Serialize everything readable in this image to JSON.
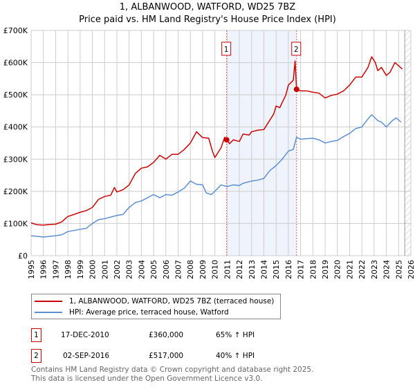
{
  "title": {
    "line1": "1, ALBANWOOD, WATFORD, WD25 7BZ",
    "line2": "Price paid vs. HM Land Registry's House Price Index (HPI)"
  },
  "colors": {
    "property": "#cc0000",
    "hpi": "#5b8fd4",
    "shade": "#eef3fc"
  },
  "chart_data": {
    "type": "line",
    "title": "Price paid vs. HM Land Registry's House Price Index (HPI)",
    "xlim": [
      1995,
      2026
    ],
    "ylim": [
      0,
      700000
    ],
    "yticks": [
      {
        "v": 0,
        "label": "£0"
      },
      {
        "v": 100000,
        "label": "£100K"
      },
      {
        "v": 200000,
        "label": "£200K"
      },
      {
        "v": 300000,
        "label": "£300K"
      },
      {
        "v": 400000,
        "label": "£400K"
      },
      {
        "v": 500000,
        "label": "£500K"
      },
      {
        "v": 600000,
        "label": "£600K"
      },
      {
        "v": 700000,
        "label": "£700K"
      }
    ],
    "xticks": [
      "1995",
      "1996",
      "1997",
      "1998",
      "1999",
      "2000",
      "2001",
      "2002",
      "2003",
      "2004",
      "2005",
      "2006",
      "2007",
      "2008",
      "2009",
      "2010",
      "2011",
      "2012",
      "2013",
      "2014",
      "2015",
      "2016",
      "2017",
      "2018",
      "2019",
      "2020",
      "2021",
      "2022",
      "2023",
      "2024",
      "2025",
      "2026"
    ],
    "grid": true,
    "shaded_range": [
      2010.96,
      2016.67
    ],
    "forecast_hatch_from": 2025.5,
    "series": [
      {
        "name": "1, ALBANWOOD, WATFORD, WD25 7BZ (terraced house)",
        "color": "#cc0000",
        "x": [
          1995,
          1995.5,
          1996,
          1996.5,
          1997,
          1997.5,
          1998,
          1998.5,
          1999,
          1999.5,
          2000,
          2000.5,
          2001,
          2001.5,
          2001.8,
          2002,
          2002.5,
          2003,
          2003.5,
          2004,
          2004.5,
          2005,
          2005.5,
          2006,
          2006.5,
          2007,
          2007.5,
          2008,
          2008.5,
          2009,
          2009.5,
          2009.8,
          2010,
          2010.5,
          2010.8,
          2010.96,
          2011.2,
          2011.5,
          2012,
          2012.3,
          2012.8,
          2013,
          2013.5,
          2014,
          2014.3,
          2014.8,
          2015,
          2015.3,
          2015.8,
          2016,
          2016.4,
          2016.55,
          2016.67,
          2017,
          2017.5,
          2018,
          2018.5,
          2019,
          2019.5,
          2020,
          2020.5,
          2021,
          2021.5,
          2022,
          2022.5,
          2022.8,
          2023.1,
          2023.3,
          2023.6,
          2024,
          2024.3,
          2024.7,
          2025,
          2025.3
        ],
        "y": [
          102,
          96,
          95,
          97,
          98,
          105,
          122,
          128,
          135,
          140,
          150,
          175,
          184,
          188,
          212,
          198,
          205,
          220,
          255,
          272,
          276,
          290,
          312,
          300,
          315,
          315,
          330,
          350,
          385,
          367,
          365,
          325,
          305,
          335,
          368,
          360,
          348,
          360,
          355,
          378,
          375,
          385,
          390,
          392,
          410,
          440,
          465,
          460,
          500,
          530,
          545,
          605,
          517,
          512,
          512,
          508,
          505,
          490,
          498,
          502,
          512,
          530,
          555,
          555,
          585,
          618,
          600,
          575,
          585,
          560,
          570,
          600,
          590,
          580
        ]
      },
      {
        "name": "HPI: Average price, terraced house, Watford",
        "color": "#5b8fd4",
        "x": [
          1995,
          1996,
          1997,
          1997.5,
          1998,
          1999,
          1999.5,
          2000,
          2000.5,
          2001,
          2002,
          2002.5,
          2003,
          2003.5,
          2004,
          2004.5,
          2005,
          2005.5,
          2006,
          2006.5,
          2007,
          2007.5,
          2008,
          2008.5,
          2009,
          2009.3,
          2009.7,
          2010,
          2010.5,
          2011,
          2011.5,
          2012,
          2012.3,
          2013,
          2013.5,
          2014,
          2014.5,
          2015,
          2015.5,
          2016,
          2016.4,
          2016.67,
          2017,
          2018,
          2018.5,
          2019,
          2019.5,
          2020,
          2020.5,
          2021,
          2021.5,
          2022,
          2022.5,
          2022.8,
          2023.3,
          2023.6,
          2024,
          2024.5,
          2024.8,
          2025.2
        ],
        "y": [
          62,
          58,
          62,
          65,
          75,
          82,
          85,
          100,
          112,
          115,
          125,
          128,
          150,
          165,
          170,
          180,
          190,
          180,
          190,
          188,
          198,
          210,
          232,
          222,
          220,
          195,
          190,
          200,
          220,
          215,
          220,
          218,
          225,
          232,
          235,
          240,
          265,
          280,
          300,
          325,
          330,
          368,
          362,
          365,
          360,
          350,
          355,
          358,
          370,
          380,
          395,
          400,
          425,
          438,
          420,
          415,
          400,
          420,
          428,
          415
        ]
      }
    ],
    "y_units": "thousands GBP",
    "annotations": [
      {
        "label": "1",
        "x": 2010.96,
        "y": 360
      },
      {
        "label": "2",
        "x": 2016.67,
        "y": 517
      }
    ]
  },
  "legend": {
    "items": [
      "1, ALBANWOOD, WATFORD, WD25 7BZ (terraced house)",
      "HPI: Average price, terraced house, Watford"
    ]
  },
  "sales": [
    {
      "num": "1",
      "date": "17-DEC-2010",
      "price": "£360,000",
      "hpi": "65% ↑ HPI"
    },
    {
      "num": "2",
      "date": "02-SEP-2016",
      "price": "£517,000",
      "hpi": "40% ↑ HPI"
    }
  ],
  "footer": {
    "line1": "Contains HM Land Registry data © Crown copyright and database right 2025.",
    "line2": "This data is licensed under the Open Government Licence v3.0."
  }
}
